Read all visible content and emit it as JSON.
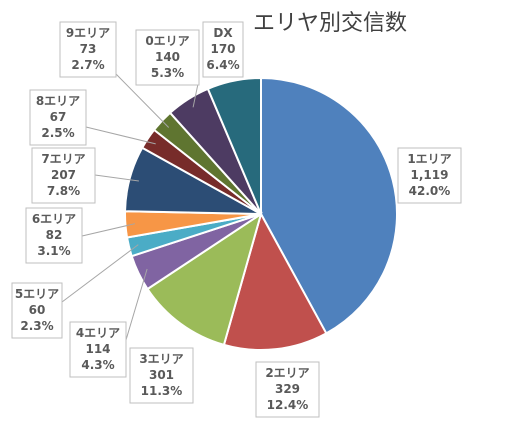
{
  "chart_data": {
    "type": "pie",
    "title": "エリヤ別交信数",
    "legend": "none",
    "slices": [
      {
        "name": "1エリア",
        "value": 1119,
        "value_label": "1,119",
        "percent_label": "42.0%",
        "color": "#4f81bd"
      },
      {
        "name": "2エリア",
        "value": 329,
        "value_label": "329",
        "percent_label": "12.4%",
        "color": "#c0504d"
      },
      {
        "name": "3エリア",
        "value": 301,
        "value_label": "301",
        "percent_label": "11.3%",
        "color": "#9bbb59"
      },
      {
        "name": "4エリア",
        "value": 114,
        "value_label": "114",
        "percent_label": "4.3%",
        "color": "#8064a2"
      },
      {
        "name": "5エリア",
        "value": 60,
        "value_label": "60",
        "percent_label": "2.3%",
        "color": "#4bacc6"
      },
      {
        "name": "6エリア",
        "value": 82,
        "value_label": "82",
        "percent_label": "3.1%",
        "color": "#f79646"
      },
      {
        "name": "7エリア",
        "value": 207,
        "value_label": "207",
        "percent_label": "7.8%",
        "color": "#2c4d75"
      },
      {
        "name": "8エリア",
        "value": 67,
        "value_label": "67",
        "percent_label": "2.5%",
        "color": "#772c2a"
      },
      {
        "name": "9エリア",
        "value": 73,
        "value_label": "73",
        "percent_label": "2.7%",
        "color": "#5f7530"
      },
      {
        "name": "0エリア",
        "value": 140,
        "value_label": "140",
        "percent_label": "5.3%",
        "color": "#4d3b62"
      },
      {
        "name": "DX",
        "value": 170,
        "value_label": "170",
        "percent_label": "6.4%",
        "color": "#276a7c"
      }
    ]
  }
}
